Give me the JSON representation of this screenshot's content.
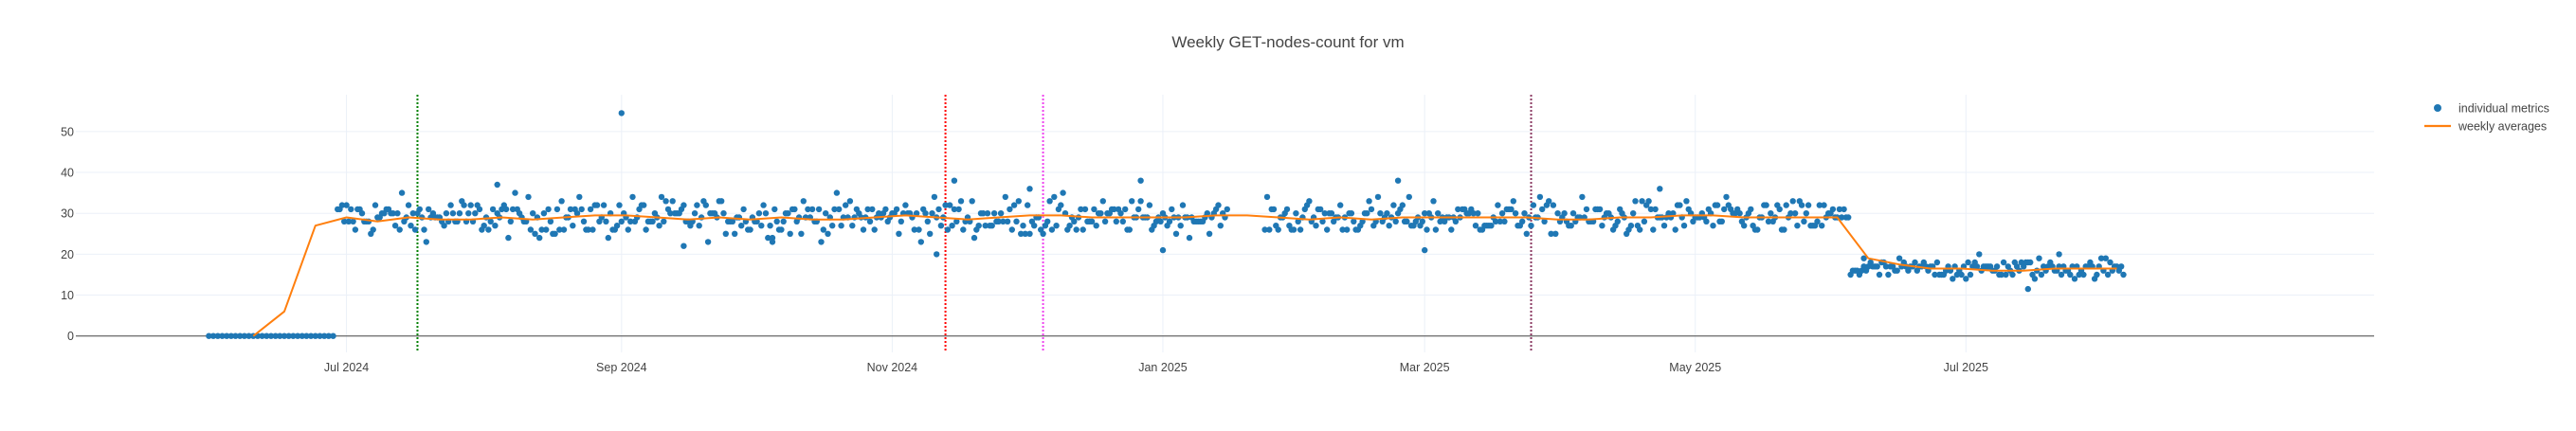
{
  "chart_data": {
    "type": "scatter",
    "title": "Weekly GET-nodes-count for vm",
    "xlabel": "",
    "ylabel": "",
    "x_range": [
      "2024-05-01",
      "2025-10-01"
    ],
    "ylim": [
      -4,
      59
    ],
    "y_ticks": [
      0,
      10,
      20,
      30,
      40,
      50
    ],
    "x_ticks": [
      {
        "date": "2024-07-01",
        "label": "Jul 2024"
      },
      {
        "date": "2024-09-01",
        "label": "Sep 2024"
      },
      {
        "date": "2024-11-01",
        "label": "Nov 2024"
      },
      {
        "date": "2025-01-01",
        "label": "Jan 2025"
      },
      {
        "date": "2025-03-01",
        "label": "Mar 2025"
      },
      {
        "date": "2025-05-01",
        "label": "May 2025"
      },
      {
        "date": "2025-07-01",
        "label": "Jul 2025"
      }
    ],
    "grid": true,
    "legend_position": "top-right",
    "series": [
      {
        "name": "individual metrics",
        "mode": "markers",
        "color": "#1f77b4",
        "segments": [
          {
            "start": "2024-05-31",
            "end": "2024-06-14",
            "level": 0,
            "spread": 0
          },
          {
            "start": "2024-06-15",
            "end": "2024-06-28",
            "level": 0,
            "spread": 0
          },
          {
            "start": "2024-06-29",
            "end": "2024-12-14",
            "level": 29,
            "spread": 4
          },
          {
            "start": "2024-12-15",
            "end": "2025-01-15",
            "level": 29,
            "spread": 3
          },
          {
            "start": "2025-01-24",
            "end": "2025-06-04",
            "level": 29,
            "spread": 3.5
          },
          {
            "start": "2025-06-05",
            "end": "2025-08-05",
            "level": 16.5,
            "spread": 2
          }
        ],
        "outliers": [
          {
            "x": "2024-09-01",
            "y": 54.5
          },
          {
            "x": "2024-08-04",
            "y": 37
          },
          {
            "x": "2024-11-15",
            "y": 38
          },
          {
            "x": "2024-12-27",
            "y": 38
          },
          {
            "x": "2025-02-23",
            "y": 38
          },
          {
            "x": "2025-04-23",
            "y": 36
          },
          {
            "x": "2024-12-02",
            "y": 36
          },
          {
            "x": "2024-11-11",
            "y": 20
          },
          {
            "x": "2024-10-05",
            "y": 23
          },
          {
            "x": "2024-09-15",
            "y": 22
          },
          {
            "x": "2025-03-01",
            "y": 21
          },
          {
            "x": "2025-01-01",
            "y": 21
          },
          {
            "x": "2025-07-15",
            "y": 11.5
          },
          {
            "x": "2025-06-08",
            "y": 19
          },
          {
            "x": "2025-07-22",
            "y": 20
          }
        ]
      },
      {
        "name": "weekly averages",
        "mode": "lines",
        "color": "#ff7f0e",
        "x": [
          "2024-06-10",
          "2024-06-17",
          "2024-06-24",
          "2024-07-01",
          "2024-07-08",
          "2024-07-15",
          "2024-07-22",
          "2024-07-29",
          "2024-08-05",
          "2024-08-12",
          "2024-08-19",
          "2024-08-26",
          "2024-09-02",
          "2024-09-09",
          "2024-09-16",
          "2024-09-23",
          "2024-09-30",
          "2024-10-07",
          "2024-10-14",
          "2024-10-21",
          "2024-10-28",
          "2024-11-04",
          "2024-11-11",
          "2024-11-18",
          "2024-11-25",
          "2024-12-02",
          "2024-12-09",
          "2024-12-16",
          "2024-12-23",
          "2024-12-30",
          "2025-01-06",
          "2025-01-13",
          "2025-01-20",
          "2025-01-27",
          "2025-02-03",
          "2025-02-10",
          "2025-02-17",
          "2025-02-24",
          "2025-03-03",
          "2025-03-10",
          "2025-03-17",
          "2025-03-24",
          "2025-03-31",
          "2025-04-07",
          "2025-04-14",
          "2025-04-21",
          "2025-04-28",
          "2025-05-05",
          "2025-05-12",
          "2025-05-19",
          "2025-05-26",
          "2025-06-02",
          "2025-06-09",
          "2025-06-16",
          "2025-06-23",
          "2025-06-30",
          "2025-07-07",
          "2025-07-14",
          "2025-07-21",
          "2025-07-28",
          "2025-08-04"
        ],
        "y": [
          0,
          6,
          27,
          29,
          28,
          29,
          28.5,
          28.5,
          29,
          28.5,
          29,
          29.5,
          29.5,
          29,
          28.5,
          29,
          28.5,
          29,
          28.5,
          28.5,
          29,
          29.5,
          29,
          28.5,
          29,
          29.5,
          29.5,
          29,
          29,
          29,
          29,
          29.5,
          29.5,
          29,
          28.5,
          29,
          28.5,
          29,
          29,
          29,
          29,
          29,
          28.5,
          28.5,
          29,
          29,
          29.5,
          29.5,
          29,
          29,
          29,
          29,
          19,
          17.5,
          16.5,
          16.5,
          16,
          16,
          16.5,
          16.5,
          16.5
        ]
      }
    ],
    "vertical_lines": [
      {
        "x": "2024-07-17",
        "color": "#008000"
      },
      {
        "x": "2024-11-13",
        "color": "#ff0000"
      },
      {
        "x": "2024-12-05",
        "color": "#ee44ee"
      },
      {
        "x": "2025-03-25",
        "color": "#8b3a62"
      }
    ]
  }
}
